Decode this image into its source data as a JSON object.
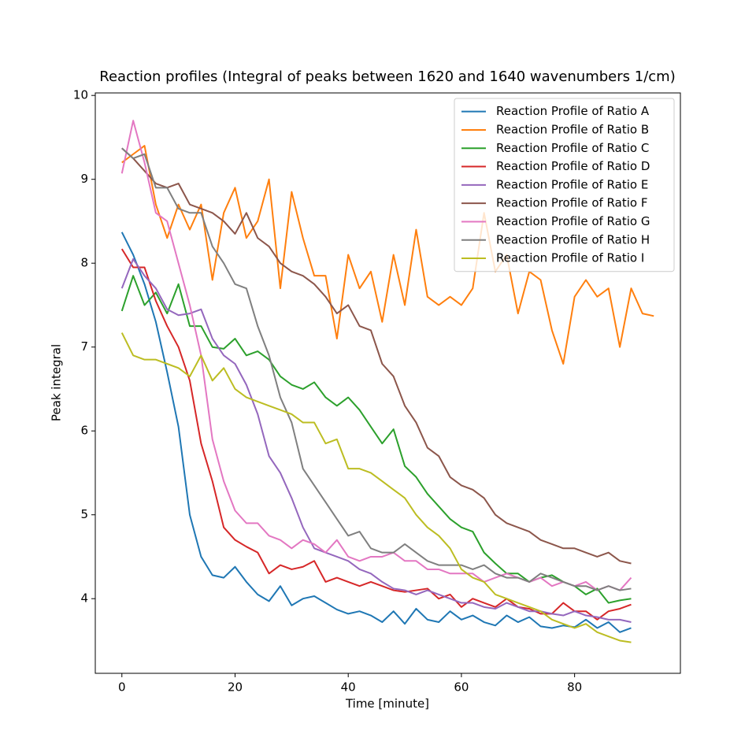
{
  "chart_data": {
    "type": "line",
    "title": "Reaction profiles (Integral of peaks between 1620 and 1640 wavenumbers 1/cm)",
    "xlabel": "Time [minute]",
    "ylabel": "Peak integral",
    "xlim": [
      -4.7,
      98.7
    ],
    "ylim": [
      3.11,
      10.03
    ],
    "xticks": [
      0,
      20,
      40,
      60,
      80
    ],
    "yticks": [
      4,
      5,
      6,
      7,
      8,
      9,
      10
    ],
    "grid": false,
    "legend": "upper right",
    "series": [
      {
        "name": "Reaction Profile of Ratio A",
        "color": "#1f77b4",
        "x": [
          0,
          2,
          4,
          6,
          8,
          10,
          12,
          14,
          16,
          18,
          20,
          22,
          24,
          26,
          28,
          30,
          32,
          34,
          36,
          38,
          40,
          42,
          44,
          46,
          48,
          50,
          52,
          54,
          56,
          58,
          60,
          62,
          64,
          66,
          68,
          70,
          72,
          74,
          76,
          78,
          80,
          82,
          84,
          86,
          88,
          90
        ],
        "values": [
          8.37,
          8.1,
          7.75,
          7.3,
          6.7,
          6.05,
          5.0,
          4.5,
          4.28,
          4.25,
          4.38,
          4.2,
          4.05,
          3.97,
          4.15,
          3.92,
          4.0,
          4.03,
          3.95,
          3.87,
          3.82,
          3.85,
          3.8,
          3.72,
          3.85,
          3.7,
          3.88,
          3.75,
          3.72,
          3.85,
          3.75,
          3.8,
          3.72,
          3.68,
          3.8,
          3.72,
          3.78,
          3.67,
          3.65,
          3.68,
          3.66,
          3.75,
          3.65,
          3.72,
          3.6,
          3.65
        ]
      },
      {
        "name": "Reaction Profile of Ratio B",
        "color": "#ff7f0e",
        "x": [
          0,
          2,
          4,
          6,
          8,
          10,
          12,
          14,
          16,
          18,
          20,
          22,
          24,
          26,
          28,
          30,
          32,
          34,
          36,
          38,
          40,
          42,
          44,
          46,
          48,
          50,
          52,
          54,
          56,
          58,
          60,
          62,
          64,
          66,
          68,
          70,
          72,
          74,
          76,
          78,
          80,
          82,
          84,
          86,
          88,
          90,
          92,
          94
        ],
        "values": [
          9.2,
          9.3,
          9.4,
          8.7,
          8.3,
          8.7,
          8.4,
          8.7,
          7.8,
          8.6,
          8.9,
          8.3,
          8.5,
          9.0,
          7.7,
          8.85,
          8.3,
          7.85,
          7.85,
          7.1,
          8.1,
          7.7,
          7.9,
          7.3,
          8.1,
          7.5,
          8.4,
          7.6,
          7.5,
          7.6,
          7.5,
          7.7,
          8.6,
          7.9,
          8.1,
          7.4,
          7.9,
          7.8,
          7.2,
          6.8,
          7.6,
          7.8,
          7.6,
          7.7,
          7.0,
          7.7,
          7.4,
          7.37
        ]
      },
      {
        "name": "Reaction Profile of Ratio C",
        "color": "#2ca02c",
        "x": [
          0,
          2,
          4,
          6,
          8,
          10,
          12,
          14,
          16,
          18,
          20,
          22,
          24,
          26,
          28,
          30,
          32,
          34,
          36,
          38,
          40,
          42,
          44,
          46,
          48,
          50,
          52,
          54,
          56,
          58,
          60,
          62,
          64,
          66,
          68,
          70,
          72,
          74,
          76,
          78,
          80,
          82,
          84,
          86,
          88,
          90
        ],
        "values": [
          7.43,
          7.85,
          7.5,
          7.65,
          7.4,
          7.75,
          7.25,
          7.25,
          7.0,
          6.98,
          7.1,
          6.9,
          6.95,
          6.85,
          6.65,
          6.55,
          6.5,
          6.58,
          6.4,
          6.3,
          6.4,
          6.25,
          6.05,
          5.85,
          6.02,
          5.58,
          5.45,
          5.25,
          5.1,
          4.95,
          4.85,
          4.8,
          4.55,
          4.42,
          4.3,
          4.3,
          4.2,
          4.25,
          4.28,
          4.2,
          4.15,
          4.05,
          4.12,
          3.95,
          3.98,
          4.0
        ]
      },
      {
        "name": "Reaction Profile of Ratio D",
        "color": "#d62728",
        "x": [
          0,
          2,
          4,
          6,
          8,
          10,
          12,
          14,
          16,
          18,
          20,
          22,
          24,
          26,
          28,
          30,
          32,
          34,
          36,
          38,
          40,
          42,
          44,
          46,
          48,
          50,
          52,
          54,
          56,
          58,
          60,
          62,
          64,
          66,
          68,
          70,
          72,
          74,
          76,
          78,
          80,
          82,
          84,
          86,
          88,
          90
        ],
        "values": [
          8.17,
          7.95,
          7.95,
          7.55,
          7.25,
          7.0,
          6.6,
          5.85,
          5.4,
          4.85,
          4.7,
          4.62,
          4.55,
          4.3,
          4.4,
          4.35,
          4.38,
          4.45,
          4.2,
          4.25,
          4.2,
          4.15,
          4.2,
          4.15,
          4.1,
          4.08,
          4.1,
          4.12,
          4.0,
          4.05,
          3.9,
          4.0,
          3.95,
          3.9,
          4.0,
          3.9,
          3.88,
          3.82,
          3.82,
          3.95,
          3.85,
          3.85,
          3.75,
          3.85,
          3.88,
          3.93
        ]
      },
      {
        "name": "Reaction Profile of Ratio E",
        "color": "#9467bd",
        "x": [
          0,
          2,
          4,
          6,
          8,
          10,
          12,
          14,
          16,
          18,
          20,
          22,
          24,
          26,
          28,
          30,
          32,
          34,
          36,
          38,
          40,
          42,
          44,
          46,
          48,
          50,
          52,
          54,
          56,
          58,
          60,
          62,
          64,
          66,
          68,
          70,
          72,
          74,
          76,
          78,
          80,
          82,
          84,
          86,
          88,
          90
        ],
        "values": [
          7.7,
          8.05,
          7.85,
          7.7,
          7.45,
          7.38,
          7.4,
          7.45,
          7.1,
          6.9,
          6.8,
          6.55,
          6.2,
          5.7,
          5.5,
          5.2,
          4.85,
          4.6,
          4.55,
          4.5,
          4.45,
          4.35,
          4.3,
          4.2,
          4.12,
          4.1,
          4.05,
          4.1,
          4.05,
          4.0,
          3.95,
          3.95,
          3.9,
          3.88,
          3.95,
          3.9,
          3.85,
          3.85,
          3.82,
          3.8,
          3.85,
          3.8,
          3.78,
          3.75,
          3.75,
          3.72
        ]
      },
      {
        "name": "Reaction Profile of Ratio F",
        "color": "#8c564b",
        "x": [
          0,
          2,
          4,
          6,
          8,
          10,
          12,
          14,
          16,
          18,
          20,
          22,
          24,
          26,
          28,
          30,
          32,
          34,
          36,
          38,
          40,
          42,
          44,
          46,
          48,
          50,
          52,
          54,
          56,
          58,
          60,
          62,
          64,
          66,
          68,
          70,
          72,
          74,
          76,
          78,
          80,
          82,
          84,
          86,
          88,
          90
        ],
        "values": [
          9.37,
          9.25,
          9.1,
          8.95,
          8.9,
          8.95,
          8.7,
          8.65,
          8.6,
          8.5,
          8.35,
          8.6,
          8.3,
          8.2,
          8.0,
          7.9,
          7.85,
          7.75,
          7.6,
          7.4,
          7.5,
          7.25,
          7.2,
          6.8,
          6.65,
          6.3,
          6.1,
          5.8,
          5.7,
          5.45,
          5.35,
          5.3,
          5.2,
          5.0,
          4.9,
          4.85,
          4.8,
          4.7,
          4.65,
          4.6,
          4.6,
          4.55,
          4.5,
          4.55,
          4.45,
          4.42
        ]
      },
      {
        "name": "Reaction Profile of Ratio G",
        "color": "#e377c2",
        "x": [
          0,
          2,
          4,
          6,
          8,
          10,
          12,
          14,
          16,
          18,
          20,
          22,
          24,
          26,
          28,
          30,
          32,
          34,
          36,
          38,
          40,
          42,
          44,
          46,
          48,
          50,
          52,
          54,
          56,
          58,
          60,
          62,
          64,
          66,
          68,
          70,
          72,
          74,
          76,
          78,
          80,
          82,
          84,
          86,
          88,
          90
        ],
        "values": [
          9.07,
          9.7,
          9.2,
          8.6,
          8.5,
          8.0,
          7.5,
          6.9,
          5.9,
          5.4,
          5.05,
          4.9,
          4.9,
          4.75,
          4.7,
          4.6,
          4.7,
          4.65,
          4.55,
          4.7,
          4.5,
          4.45,
          4.5,
          4.5,
          4.55,
          4.45,
          4.45,
          4.35,
          4.35,
          4.3,
          4.3,
          4.3,
          4.2,
          4.25,
          4.3,
          4.25,
          4.2,
          4.25,
          4.15,
          4.2,
          4.15,
          4.2,
          4.1,
          4.15,
          4.1,
          4.25
        ]
      },
      {
        "name": "Reaction Profile of Ratio H",
        "color": "#7f7f7f",
        "x": [
          0,
          2,
          4,
          6,
          8,
          10,
          12,
          14,
          16,
          18,
          20,
          22,
          24,
          26,
          28,
          30,
          32,
          34,
          36,
          38,
          40,
          42,
          44,
          46,
          48,
          50,
          52,
          54,
          56,
          58,
          60,
          62,
          64,
          66,
          68,
          70,
          72,
          74,
          76,
          78,
          80,
          82,
          84,
          86,
          88,
          90
        ],
        "values": [
          9.37,
          9.25,
          9.3,
          8.9,
          8.9,
          8.65,
          8.6,
          8.6,
          8.2,
          8.0,
          7.75,
          7.7,
          7.25,
          6.9,
          6.4,
          6.1,
          5.55,
          5.35,
          5.15,
          4.95,
          4.75,
          4.8,
          4.6,
          4.55,
          4.55,
          4.65,
          4.55,
          4.45,
          4.4,
          4.4,
          4.4,
          4.35,
          4.4,
          4.3,
          4.25,
          4.25,
          4.2,
          4.3,
          4.25,
          4.2,
          4.15,
          4.15,
          4.1,
          4.15,
          4.1,
          4.12
        ]
      },
      {
        "name": "Reaction Profile of Ratio I",
        "color": "#bcbd22",
        "x": [
          0,
          2,
          4,
          6,
          8,
          10,
          12,
          14,
          16,
          18,
          20,
          22,
          24,
          26,
          28,
          30,
          32,
          34,
          36,
          38,
          40,
          42,
          44,
          46,
          48,
          50,
          52,
          54,
          56,
          58,
          60,
          62,
          64,
          66,
          68,
          70,
          72,
          74,
          76,
          78,
          80,
          82,
          84,
          86,
          88,
          90
        ],
        "values": [
          7.17,
          6.9,
          6.85,
          6.85,
          6.8,
          6.75,
          6.65,
          6.9,
          6.6,
          6.75,
          6.5,
          6.4,
          6.35,
          6.3,
          6.25,
          6.2,
          6.1,
          6.1,
          5.85,
          5.9,
          5.55,
          5.55,
          5.5,
          5.4,
          5.3,
          5.2,
          5.0,
          4.85,
          4.75,
          4.6,
          4.35,
          4.25,
          4.2,
          4.05,
          4.0,
          3.95,
          3.9,
          3.85,
          3.75,
          3.7,
          3.65,
          3.7,
          3.6,
          3.55,
          3.5,
          3.48
        ]
      }
    ]
  }
}
